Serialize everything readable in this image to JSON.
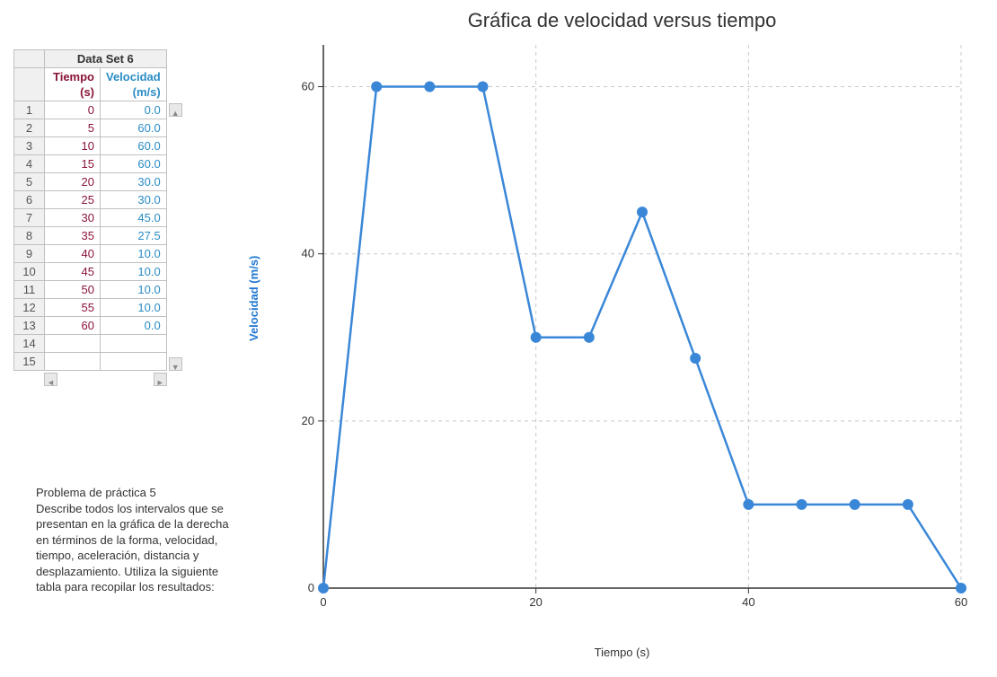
{
  "table": {
    "dataset_label": "Data Set 6",
    "headers": {
      "tiempo": "Tiempo",
      "tiempo_unit": "(s)",
      "velocidad": "Velocidad",
      "velocidad_unit": "(m/s)"
    },
    "colors": {
      "tiempo_text": "#8a1538",
      "velocidad_text": "#2b8cc4",
      "rownum_bg": "#f0f0f0",
      "border": "#c0c0c0"
    },
    "rows": [
      {
        "n": "1",
        "t": "0",
        "v": "0.0"
      },
      {
        "n": "2",
        "t": "5",
        "v": "60.0"
      },
      {
        "n": "3",
        "t": "10",
        "v": "60.0"
      },
      {
        "n": "4",
        "t": "15",
        "v": "60.0"
      },
      {
        "n": "5",
        "t": "20",
        "v": "30.0"
      },
      {
        "n": "6",
        "t": "25",
        "v": "30.0"
      },
      {
        "n": "7",
        "t": "30",
        "v": "45.0"
      },
      {
        "n": "8",
        "t": "35",
        "v": "27.5"
      },
      {
        "n": "9",
        "t": "40",
        "v": "10.0"
      },
      {
        "n": "10",
        "t": "45",
        "v": "10.0"
      },
      {
        "n": "11",
        "t": "50",
        "v": "10.0"
      },
      {
        "n": "12",
        "t": "55",
        "v": "10.0"
      },
      {
        "n": "13",
        "t": "60",
        "v": "0.0"
      },
      {
        "n": "14",
        "t": "",
        "v": ""
      },
      {
        "n": "15",
        "t": "",
        "v": ""
      }
    ]
  },
  "problem": {
    "title": "Problema de práctica 5",
    "body": "Describe todos los intervalos que se presentan en la gráfica de la derecha en términos de la forma, velocidad, tiempo, aceleración, distancia y desplazamiento. Utiliza la siguiente tabla para recopilar los resultados:"
  },
  "chart": {
    "type": "line-scatter",
    "title": "Gráfica de velocidad versus tiempo",
    "xlabel": "Tiempo (s)",
    "ylabel": "Velocidad (m/s)",
    "xlim": [
      0,
      60
    ],
    "ylim": [
      0,
      65
    ],
    "xticks": [
      0,
      20,
      40,
      60
    ],
    "yticks": [
      0,
      20,
      40,
      60
    ],
    "grid_color": "#c8c8c8",
    "grid_dash": "4,4",
    "axis_color": "#333333",
    "line_color": "#3a87d8",
    "marker_color": "#3a87d8",
    "line_width": 2.5,
    "marker_radius": 6,
    "background_color": "#ffffff",
    "title_fontsize": 22,
    "label_fontsize": 13,
    "ylabel_color": "#1f77d0",
    "points": [
      {
        "x": 0,
        "y": 0
      },
      {
        "x": 5,
        "y": 60
      },
      {
        "x": 10,
        "y": 60
      },
      {
        "x": 15,
        "y": 60
      },
      {
        "x": 20,
        "y": 30
      },
      {
        "x": 25,
        "y": 30
      },
      {
        "x": 30,
        "y": 45
      },
      {
        "x": 35,
        "y": 27.5
      },
      {
        "x": 40,
        "y": 10
      },
      {
        "x": 45,
        "y": 10
      },
      {
        "x": 50,
        "y": 10
      },
      {
        "x": 55,
        "y": 10
      },
      {
        "x": 60,
        "y": 0
      }
    ]
  }
}
